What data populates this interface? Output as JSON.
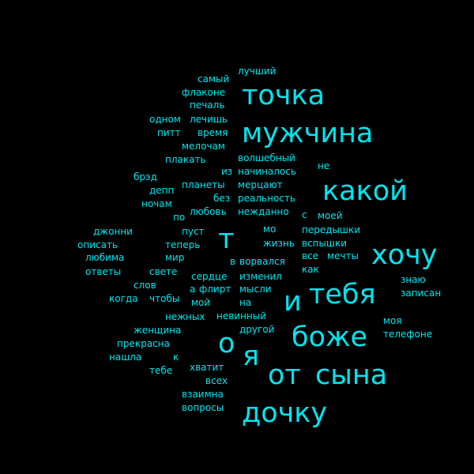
{
  "accent_color": "#00e5ee",
  "background_color": "#000000",
  "words": [
    "лучший",
    "самый",
    "точка",
    "флаконе",
    "печаль",
    "одном",
    "лечишь",
    "мужчина",
    "питт",
    "время",
    "мелочам",
    "плакать",
    "волшебный",
    "не",
    "брэд",
    "из",
    "начиналось",
    "какой",
    "депп",
    "планеты",
    "мерцают",
    "ночам",
    "без",
    "реальность",
    "по",
    "любовь",
    "нежданно",
    "с",
    "моей",
    "джонни",
    "пуст",
    "мо",
    "передышки",
    "т",
    "описать",
    "теперь",
    "жизнь",
    "вспышки",
    "хочу",
    "любима",
    "мир",
    "все",
    "мечты",
    "в",
    "ворвался",
    "как",
    "ответы",
    "свете",
    "сердце",
    "изменил",
    "знаю",
    "слов",
    "а",
    "флирт",
    "мысли",
    "тебя",
    "записан",
    "когда",
    "чтобы",
    "и",
    "мой",
    "на",
    "нежных",
    "невинный",
    "моя",
    "женщина",
    "другой",
    "боже",
    "телефоне",
    "о",
    "прекрасна",
    "я",
    "нашла",
    "к",
    "тебе",
    "хватит",
    "от",
    "сына",
    "всех",
    "взаимна",
    "вопросы",
    "дочку"
  ]
}
